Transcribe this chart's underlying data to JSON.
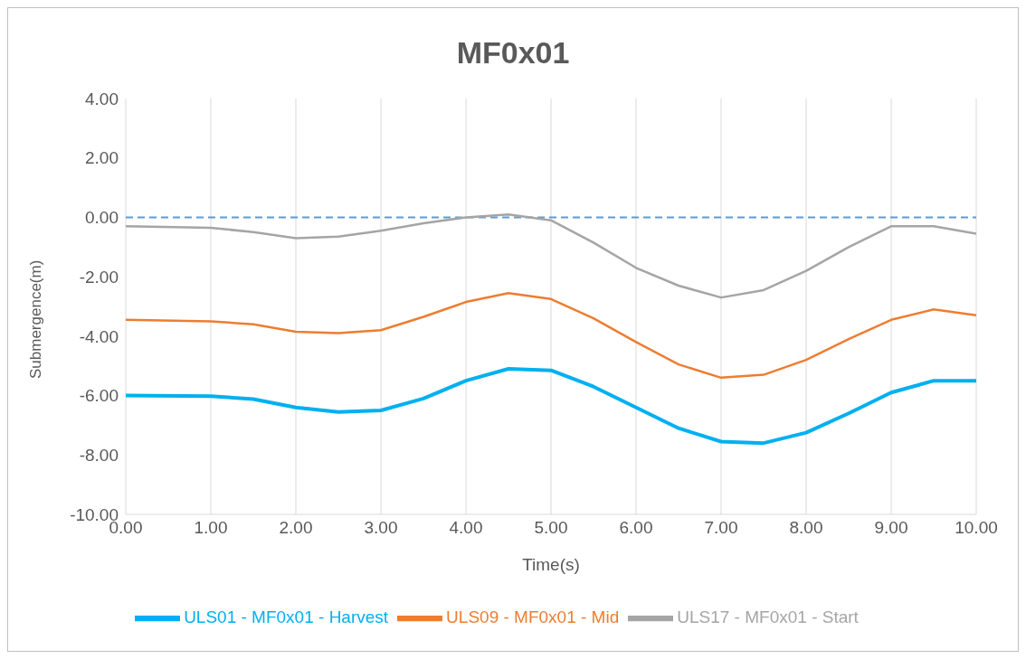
{
  "chart_data": {
    "type": "line",
    "title": "MF0x01",
    "xlabel": "Time(s)",
    "ylabel": "Submergence(m)",
    "x": [
      0,
      1,
      1.5,
      2,
      2.5,
      3,
      3.5,
      4,
      4.5,
      5,
      5.5,
      6,
      6.5,
      7,
      7.5,
      8,
      8.5,
      9,
      9.5,
      10
    ],
    "series": [
      {
        "name": "ULS01 - MF0x01 - Harvest",
        "color": "#00b0f0",
        "values": [
          -6.0,
          -6.02,
          -6.12,
          -6.4,
          -6.55,
          -6.5,
          -6.1,
          -5.5,
          -5.1,
          -5.15,
          -5.7,
          -6.4,
          -7.1,
          -7.55,
          -7.6,
          -7.25,
          -6.6,
          -5.9,
          -5.5,
          -5.5
        ]
      },
      {
        "name": "ULS09 - MF0x01 - Mid",
        "color": "#ed7d31",
        "values": [
          -3.45,
          -3.5,
          -3.6,
          -3.85,
          -3.9,
          -3.8,
          -3.35,
          -2.85,
          -2.55,
          -2.75,
          -3.4,
          -4.2,
          -4.95,
          -5.4,
          -5.3,
          -4.8,
          -4.1,
          -3.45,
          -3.1,
          -3.3
        ]
      },
      {
        "name": "ULS17 - MF0x01 - Start",
        "color": "#a5a5a5",
        "values": [
          -0.3,
          -0.35,
          -0.5,
          -0.7,
          -0.65,
          -0.45,
          -0.2,
          0,
          0.1,
          -0.1,
          -0.85,
          -1.7,
          -2.3,
          -2.7,
          -2.45,
          -1.8,
          -1.0,
          -0.3,
          -0.3,
          -0.55
        ]
      }
    ],
    "xlim": [
      0,
      10
    ],
    "xticks": [
      {
        "value": 0,
        "label": "0.00"
      },
      {
        "value": 1,
        "label": "1.00"
      },
      {
        "value": 2,
        "label": "2.00"
      },
      {
        "value": 3,
        "label": "3.00"
      },
      {
        "value": 4,
        "label": "4.00"
      },
      {
        "value": 5,
        "label": "5.00"
      },
      {
        "value": 6,
        "label": "6.00"
      },
      {
        "value": 7,
        "label": "7.00"
      },
      {
        "value": 8,
        "label": "8.00"
      },
      {
        "value": 9,
        "label": "9.00"
      },
      {
        "value": 10,
        "label": "10.00"
      }
    ],
    "ylim": [
      -10,
      4
    ],
    "yticks": [
      {
        "value": -10,
        "label": "-10.00"
      },
      {
        "value": -8,
        "label": "-8.00"
      },
      {
        "value": -6,
        "label": "-6.00"
      },
      {
        "value": -4,
        "label": "-4.00"
      },
      {
        "value": -2,
        "label": "-2.00"
      },
      {
        "value": 0,
        "label": "0.00"
      },
      {
        "value": 2,
        "label": "2.00"
      },
      {
        "value": 4,
        "label": "4.00"
      }
    ],
    "ref_lines": [
      {
        "axis": "y",
        "value": 0,
        "label": null,
        "color": "#5b9bd5",
        "line_style": "dashed"
      }
    ],
    "grid": "x",
    "legend": "bottom",
    "marker": "none",
    "line_style": "solid"
  }
}
